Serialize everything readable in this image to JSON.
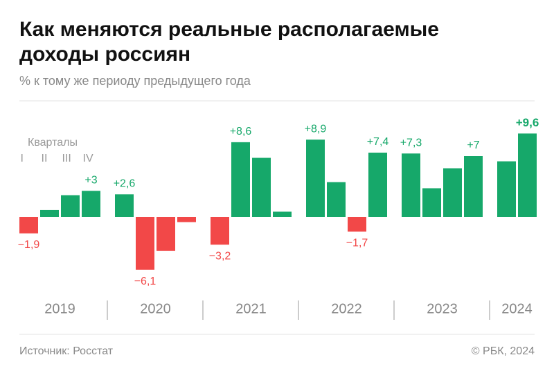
{
  "chart_data": {
    "type": "bar",
    "title": "Как меняются реальные располагаемые доходы россиян",
    "subtitle": "% к тому же периоду предыдущего года",
    "legend_title": "Кварталы",
    "quarters": [
      "I",
      "II",
      "III",
      "IV"
    ],
    "positive_color": "#16a86a",
    "negative_color": "#f24848",
    "ylim": [
      -7,
      10.5
    ],
    "groups": [
      {
        "name": "2019",
        "values": [
          -1.9,
          0.8,
          2.5,
          3
        ],
        "value_labels": [
          "−1,9",
          null,
          null,
          "+3"
        ]
      },
      {
        "name": "2020",
        "values": [
          2.6,
          -6.1,
          -3.9,
          -0.6
        ],
        "value_labels": [
          "+2,6",
          "−6,1",
          null,
          null
        ]
      },
      {
        "name": "2021",
        "values": [
          -3.2,
          8.6,
          6.8,
          0.6
        ],
        "value_labels": [
          "−3,2",
          "+8,6",
          null,
          null
        ]
      },
      {
        "name": "2022",
        "values": [
          8.9,
          4.0,
          -1.7,
          7.4
        ],
        "value_labels": [
          "+8,9",
          null,
          "−1,7",
          "+7,4"
        ]
      },
      {
        "name": "2023",
        "values": [
          7.3,
          3.3,
          5.6,
          7
        ],
        "value_labels": [
          "+7,3",
          null,
          null,
          "+7"
        ]
      },
      {
        "name": "2024",
        "values": [
          6.4,
          9.6
        ],
        "value_labels": [
          null,
          "+9,6"
        ]
      }
    ],
    "source": "Источник: Росстат",
    "copyright": "© РБК, 2024"
  }
}
